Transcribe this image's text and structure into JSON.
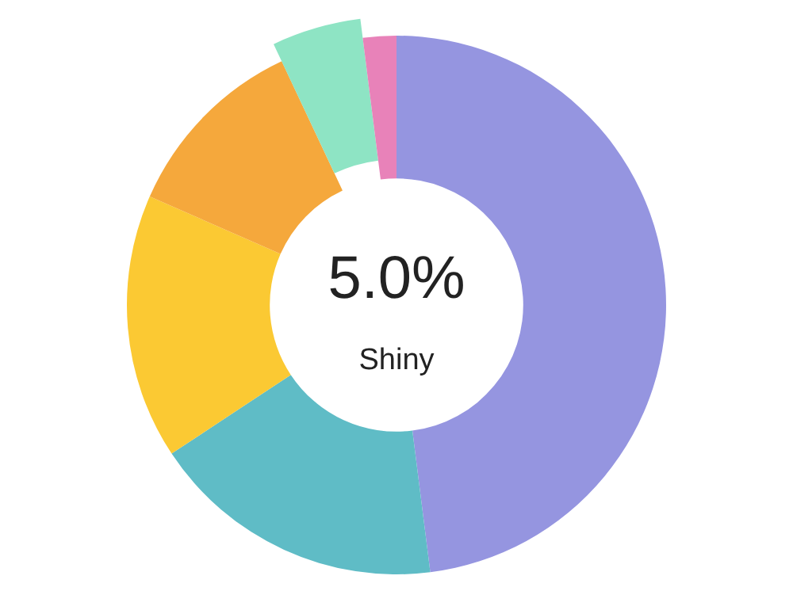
{
  "chart_data": {
    "type": "donut",
    "categories": [
      null,
      null,
      null,
      null,
      null,
      null
    ],
    "values": [
      48,
      17.7,
      15.9,
      11.4,
      5,
      2
    ],
    "colors": [
      "#9595e0",
      "#5fbcc6",
      "#fbc933",
      "#f5a83c",
      "#8ee4c4",
      "#e882b9"
    ],
    "value_labels": [
      null,
      null,
      null,
      null,
      "5.0%",
      null
    ],
    "annotations": [
      "Shiny"
    ]
  }
}
